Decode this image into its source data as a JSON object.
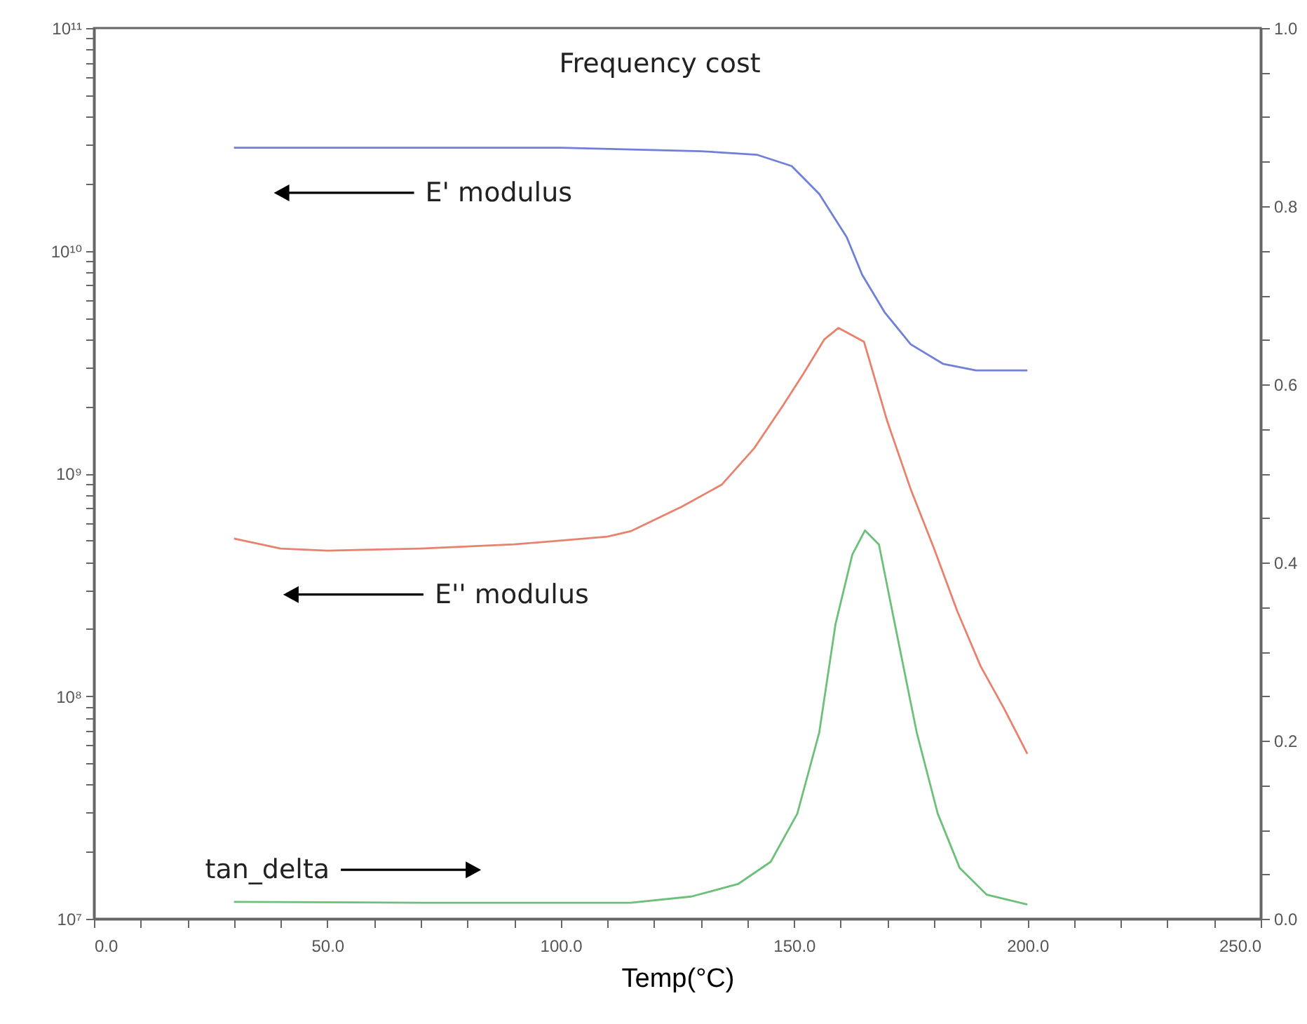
{
  "chart_data": {
    "type": "line",
    "title": "Frequency cost",
    "xlabel": "Temp(°C)",
    "xlim": [
      0,
      250
    ],
    "xticks": [
      {
        "value": 0,
        "label": "0.0"
      },
      {
        "value": 10,
        "label": null
      },
      {
        "value": 20,
        "label": null
      },
      {
        "value": 30,
        "label": null
      },
      {
        "value": 40,
        "label": null
      },
      {
        "value": 50,
        "label": "50.0"
      },
      {
        "value": 60,
        "label": null
      },
      {
        "value": 70,
        "label": null
      },
      {
        "value": 80,
        "label": null
      },
      {
        "value": 90,
        "label": null
      },
      {
        "value": 100,
        "label": "100.0"
      },
      {
        "value": 110,
        "label": null
      },
      {
        "value": 120,
        "label": null
      },
      {
        "value": 130,
        "label": null
      },
      {
        "value": 140,
        "label": null
      },
      {
        "value": 150,
        "label": "150.0"
      },
      {
        "value": 160,
        "label": null
      },
      {
        "value": 170,
        "label": null
      },
      {
        "value": 180,
        "label": null
      },
      {
        "value": 190,
        "label": null
      },
      {
        "value": 200,
        "label": "200.0"
      },
      {
        "value": 210,
        "label": null
      },
      {
        "value": 220,
        "label": null
      },
      {
        "value": 230,
        "label": null
      },
      {
        "value": 240,
        "label": null
      },
      {
        "value": 250,
        "label": "250.0"
      }
    ],
    "log": "y",
    "ylim": [
      10000000.0,
      100000000000.0
    ],
    "yticks": [
      {
        "value": 10000000.0,
        "label": "10⁷"
      },
      {
        "value": 20000000.0,
        "label": null
      },
      {
        "value": 30000000.0,
        "label": null
      },
      {
        "value": 40000000.0,
        "label": null
      },
      {
        "value": 50000000.0,
        "label": null
      },
      {
        "value": 60000000.0,
        "label": null
      },
      {
        "value": 70000000.0,
        "label": null
      },
      {
        "value": 80000000.0,
        "label": null
      },
      {
        "value": 90000000.0,
        "label": null
      },
      {
        "value": 100000000.0,
        "label": "10⁸"
      },
      {
        "value": 200000000.0,
        "label": null
      },
      {
        "value": 300000000.0,
        "label": null
      },
      {
        "value": 400000000.0,
        "label": null
      },
      {
        "value": 500000000.0,
        "label": null
      },
      {
        "value": 600000000.0,
        "label": null
      },
      {
        "value": 700000000.0,
        "label": null
      },
      {
        "value": 800000000.0,
        "label": null
      },
      {
        "value": 900000000.0,
        "label": null
      },
      {
        "value": 1000000000.0,
        "label": "10⁹"
      },
      {
        "value": 2000000000.0,
        "label": null
      },
      {
        "value": 3000000000.0,
        "label": null
      },
      {
        "value": 4000000000.0,
        "label": null
      },
      {
        "value": 5000000000.0,
        "label": null
      },
      {
        "value": 6000000000.0,
        "label": null
      },
      {
        "value": 7000000000.0,
        "label": null
      },
      {
        "value": 8000000000.0,
        "label": null
      },
      {
        "value": 9000000000.0,
        "label": null
      },
      {
        "value": 10000000000.0,
        "label": "10¹⁰"
      },
      {
        "value": 20000000000.0,
        "label": null
      },
      {
        "value": 30000000000.0,
        "label": null
      },
      {
        "value": 40000000000.0,
        "label": null
      },
      {
        "value": 50000000000.0,
        "label": null
      },
      {
        "value": 60000000000.0,
        "label": null
      },
      {
        "value": 70000000000.0,
        "label": null
      },
      {
        "value": 80000000000.0,
        "label": null
      },
      {
        "value": 90000000000.0,
        "label": null
      },
      {
        "value": 100000000000.0,
        "label": "10¹¹"
      }
    ],
    "y2lim": [
      0,
      1
    ],
    "y2ticks": [
      {
        "value": 0,
        "label": "0.0"
      },
      {
        "value": 0.05,
        "label": null
      },
      {
        "value": 0.1,
        "label": null
      },
      {
        "value": 0.15,
        "label": null
      },
      {
        "value": 0.2,
        "label": "0.2"
      },
      {
        "value": 0.25,
        "label": null
      },
      {
        "value": 0.3,
        "label": null
      },
      {
        "value": 0.35,
        "label": null
      },
      {
        "value": 0.4,
        "label": "0.4"
      },
      {
        "value": 0.45,
        "label": null
      },
      {
        "value": 0.5,
        "label": null
      },
      {
        "value": 0.55,
        "label": null
      },
      {
        "value": 0.6,
        "label": "0.6"
      },
      {
        "value": 0.65,
        "label": null
      },
      {
        "value": 0.7,
        "label": null
      },
      {
        "value": 0.75,
        "label": null
      },
      {
        "value": 0.8,
        "label": "0.8"
      },
      {
        "value": 0.85,
        "label": null
      },
      {
        "value": 0.9,
        "label": null
      },
      {
        "value": 0.95,
        "label": null
      },
      {
        "value": 1,
        "label": "1.0"
      }
    ],
    "line_style": "solid",
    "series": [
      {
        "name": "E' modulus",
        "color": "#7080d8",
        "x": [
          30,
          100,
          130,
          142,
          149.5,
          155.4,
          161.3,
          164.6,
          169.4,
          175,
          182,
          189,
          200
        ],
        "values": [
          29000000000.0,
          29000000000.0,
          28000000000.0,
          27000000000.0,
          24000000000.0,
          18000000000.0,
          11500000000.0,
          7800000000.0,
          5300000000.0,
          3800000000.0,
          3100000000.0,
          2900000000.0,
          2900000000.0
        ]
      },
      {
        "name": "E'' modulus",
        "color": "#e8826e",
        "x": [
          30,
          40,
          50,
          70,
          90,
          110,
          115,
          126,
          134.5,
          141.5,
          147.5,
          152,
          156.5,
          159.5,
          165,
          170,
          175,
          180,
          185,
          190,
          195,
          200
        ],
        "values": [
          510000000.0,
          460000000.0,
          450000000.0,
          460000000.0,
          480000000.0,
          520000000.0,
          550000000.0,
          710000000.0,
          890000000.0,
          1300000000.0,
          2000000000.0,
          2800000000.0,
          4000000000.0,
          4500000000.0,
          3900000000.0,
          1710000000.0,
          850000000.0,
          460000000.0,
          240000000.0,
          136000000.0,
          88000000.0,
          55000000.0
        ]
      },
      {
        "name": "tan_delta",
        "color": "#6cc07a",
        "axis": "y2",
        "x": [
          30,
          70,
          115,
          128,
          138,
          145,
          150.7,
          155.4,
          158.9,
          162.5,
          165.2,
          168.2,
          171.6,
          176.3,
          180.8,
          185.5,
          191.3,
          200
        ],
        "values": [
          0.019,
          0.018,
          0.018,
          0.025,
          0.039,
          0.064,
          0.118,
          0.209,
          0.331,
          0.409,
          0.436,
          0.42,
          0.331,
          0.209,
          0.118,
          0.057,
          0.027,
          0.016
        ]
      }
    ]
  }
}
